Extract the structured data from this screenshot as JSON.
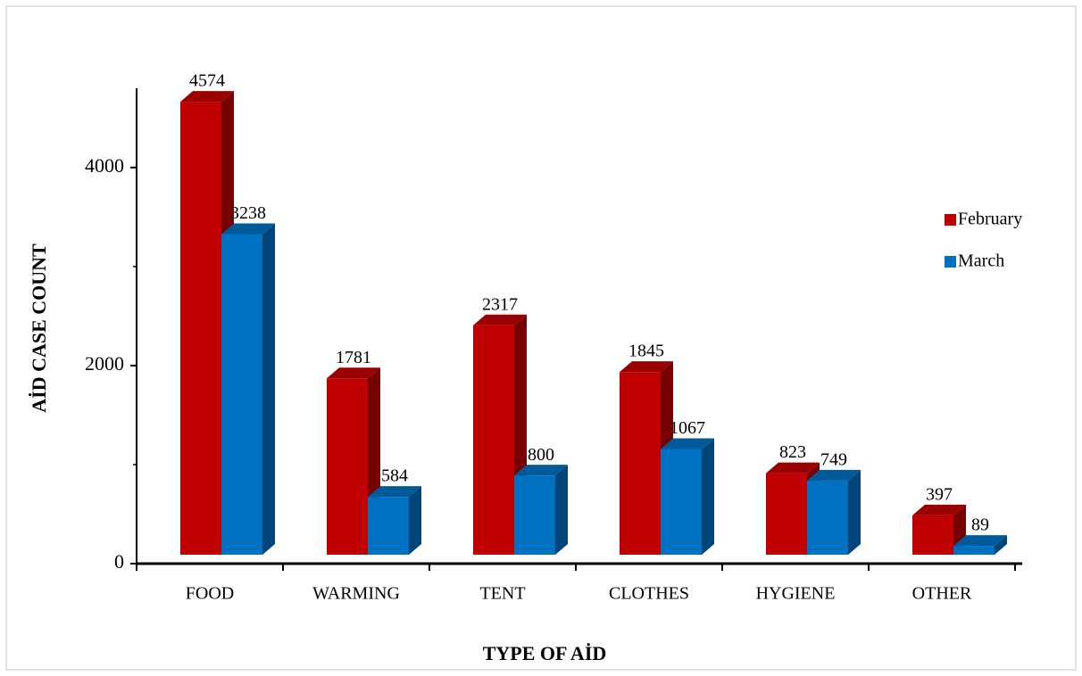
{
  "chart_data": {
    "type": "bar3d",
    "x_label": "TYPE OF AİD",
    "y_label": "AİD CASE COUNT",
    "categories": [
      "FOOD",
      "WARMING",
      "TENT",
      "CLOTHES",
      "HYGIENE",
      "OTHER"
    ],
    "series": [
      {
        "name": "February",
        "color": "#c00000",
        "values": [
          4574,
          1781,
          2317,
          1845,
          823,
          397
        ]
      },
      {
        "name": "March",
        "color": "#0070c0",
        "values": [
          3238,
          584,
          800,
          1067,
          749,
          89
        ]
      }
    ],
    "ylim": [
      0,
      4800
    ],
    "yticks": [
      0,
      2000,
      4000
    ],
    "minor_yticks": [
      1000,
      3000
    ],
    "legend": "right",
    "grid": false
  }
}
